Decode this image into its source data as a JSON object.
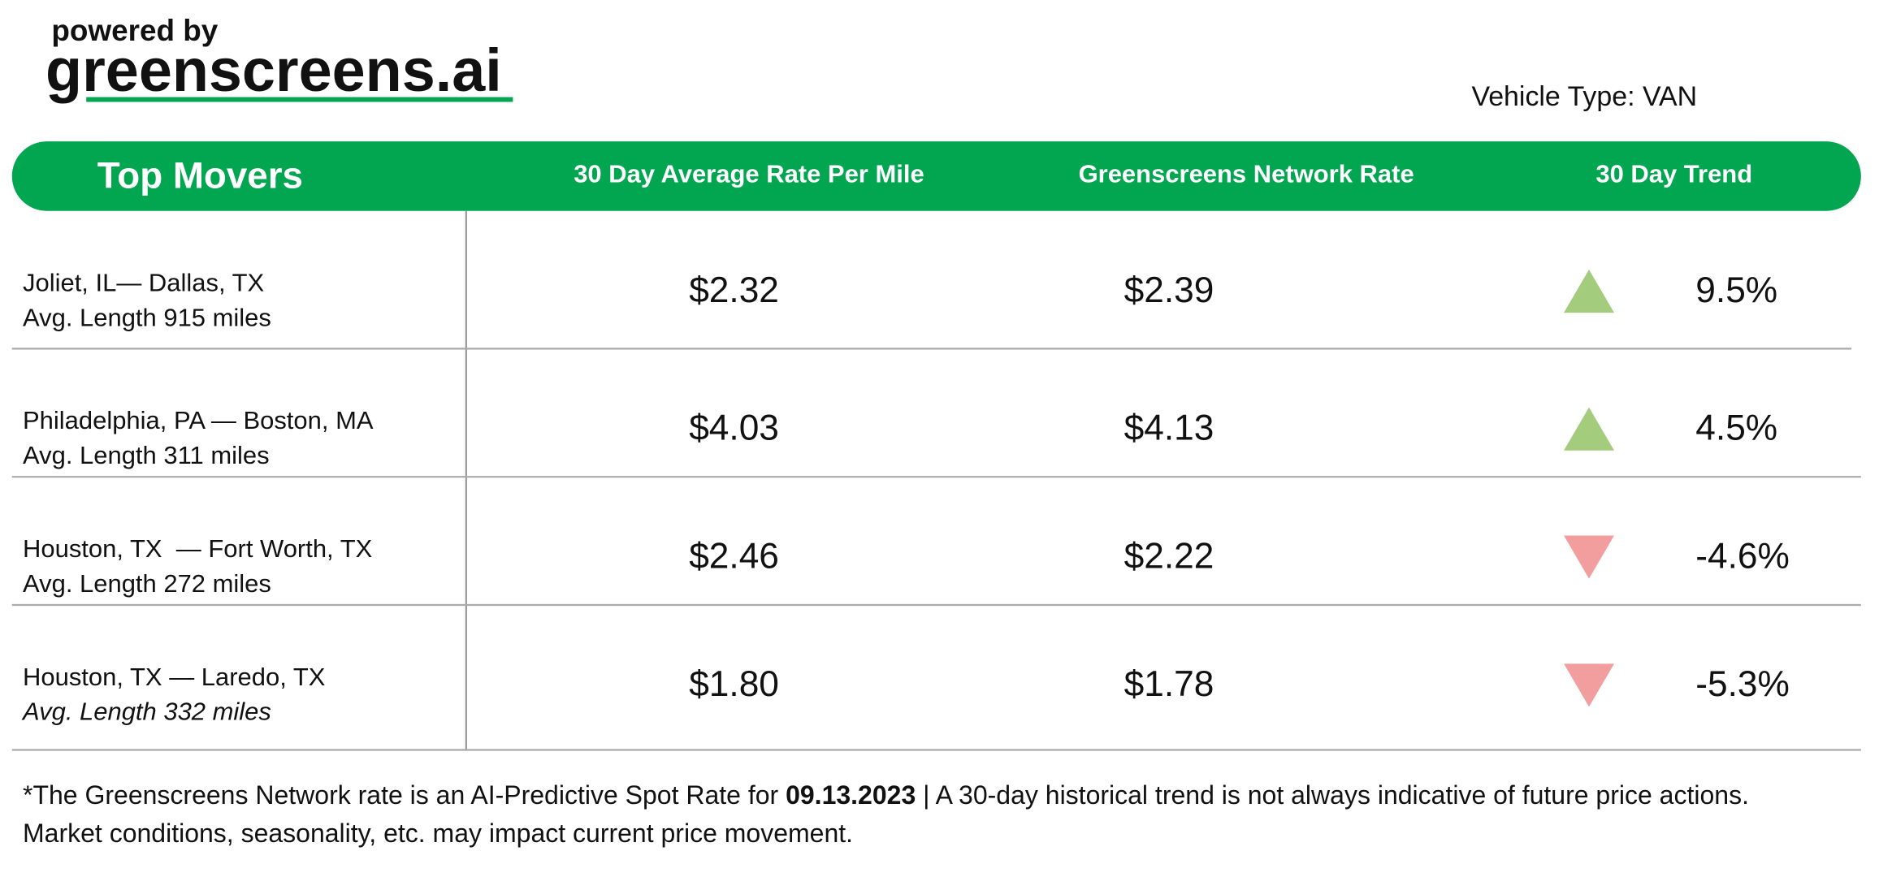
{
  "header": {
    "powered_by": "powered by",
    "brand": "greenscreens.ai",
    "vehicle_type": "Vehicle Type: VAN"
  },
  "table": {
    "columns": [
      "Top Movers",
      "30 Day Average Rate Per Mile",
      "Greenscreens Network Rate",
      "30 Day Trend"
    ],
    "header_color": "#02a651",
    "up_color": "#a3cc7c",
    "down_color": "#f29e9e",
    "rows": [
      {
        "lane": "Joliet, IL— Dallas, TX",
        "length": "Avg. Length 915 miles",
        "avg_rate": "$2.32",
        "network_rate": "$2.39",
        "trend": "9.5%",
        "direction": "up"
      },
      {
        "lane": "Philadelphia, PA — Boston, MA",
        "length": "Avg. Length 311 miles",
        "avg_rate": "$4.03",
        "network_rate": "$4.13",
        "trend": "4.5%",
        "direction": "up"
      },
      {
        "lane": "Houston, TX  — Fort Worth, TX",
        "length": "Avg. Length 272 miles",
        "avg_rate": "$2.46",
        "network_rate": "$2.22",
        "trend": "-4.6%",
        "direction": "down"
      },
      {
        "lane": "Houston, TX — Laredo, TX",
        "length": "Avg. Length 332 miles",
        "avg_rate": "$1.80",
        "network_rate": "$1.78",
        "trend": "-5.3%",
        "direction": "down"
      }
    ]
  },
  "footnote": {
    "before": "*The Greenscreens Network rate is an AI-Predictive Spot Rate for ",
    "date": "09.13.2023",
    "after": " | A 30-day historical trend is not always indicative of future price actions. Market conditions, seasonality, etc. may impact current price movement."
  }
}
